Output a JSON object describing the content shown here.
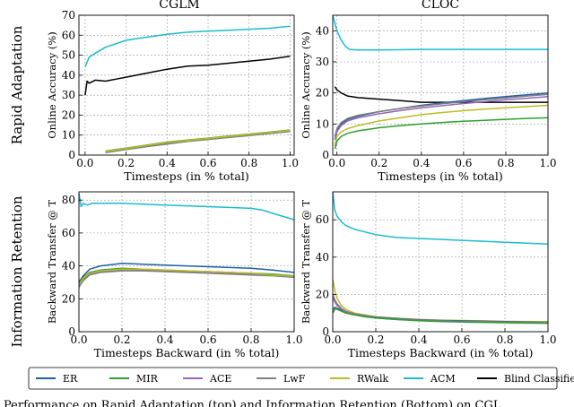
{
  "column_titles": [
    "CGLM",
    "CLOC"
  ],
  "row_titles": [
    "Rapid Adaptation",
    "Information Retention"
  ],
  "caption_fragment": "Performance on Rapid Adaptation (top) and Information Retention (Bottom) on CGL",
  "legend": [
    {
      "name": "ER",
      "color": "#1f5fa6"
    },
    {
      "name": "MIR",
      "color": "#2ca02c"
    },
    {
      "name": "ACE",
      "color": "#9467bd"
    },
    {
      "name": "LwF",
      "color": "#7f7f7f"
    },
    {
      "name": "RWalk",
      "color": "#bcbd22"
    },
    {
      "name": "ACM",
      "color": "#17becf"
    },
    {
      "name": "Blind Classifier",
      "color": "#000000"
    }
  ],
  "chart_data": [
    {
      "type": "line",
      "panel": "CGLM - Rapid Adaptation",
      "xlabel": "Timesteps (in % total)",
      "ylabel": "Online Accuracy (%)",
      "xlim": [
        -0.03,
        1.02
      ],
      "ylim": [
        0,
        70
      ],
      "xticks": [
        "0.0",
        "0.2",
        "0.4",
        "0.6",
        "0.8",
        "1.0"
      ],
      "xtick_values": [
        0,
        0.2,
        0.4,
        0.6,
        0.8,
        1.0
      ],
      "yticks": [
        "0",
        "10",
        "20",
        "30",
        "40",
        "50",
        "60",
        "70"
      ],
      "ytick_values": [
        0,
        10,
        20,
        30,
        40,
        50,
        60,
        70
      ],
      "series": [
        {
          "name": "ACM",
          "x": [
            0,
            0.02,
            0.05,
            0.1,
            0.2,
            0.3,
            0.4,
            0.5,
            0.6,
            0.7,
            0.8,
            0.9,
            1.0
          ],
          "values": [
            44,
            49,
            51,
            54,
            57.5,
            59,
            60.5,
            61.5,
            62,
            62.5,
            63,
            63.5,
            64.5
          ]
        },
        {
          "name": "Blind Classifier",
          "x": [
            0,
            0.01,
            0.02,
            0.05,
            0.1,
            0.15,
            0.2,
            0.3,
            0.4,
            0.5,
            0.6,
            0.7,
            0.8,
            0.9,
            1.0
          ],
          "values": [
            30,
            37,
            36,
            37.5,
            37,
            38,
            39,
            41,
            43,
            44.5,
            45,
            46,
            47,
            48,
            49.5
          ]
        },
        {
          "name": "ER",
          "x": [
            0.1,
            0.2,
            0.3,
            0.4,
            0.5,
            0.6,
            0.7,
            0.8,
            0.9,
            1.0
          ],
          "values": [
            1.5,
            3,
            4.5,
            6,
            7,
            8,
            9,
            10,
            11,
            12
          ]
        },
        {
          "name": "MIR",
          "x": [
            0.1,
            0.2,
            0.3,
            0.4,
            0.5,
            0.6,
            0.7,
            0.8,
            0.9,
            1.0
          ],
          "values": [
            2,
            3.5,
            5,
            6.5,
            7.5,
            8.5,
            9.5,
            10.5,
            11.5,
            12.5
          ]
        },
        {
          "name": "ACE",
          "x": [
            0.1,
            0.2,
            0.3,
            0.4,
            0.5,
            0.6,
            0.7,
            0.8,
            0.9,
            1.0
          ],
          "values": [
            1.5,
            3,
            4.5,
            6,
            7,
            8,
            9,
            10,
            11,
            12
          ]
        },
        {
          "name": "LwF",
          "x": [
            0.1,
            0.2,
            0.3,
            0.4,
            0.5,
            0.6,
            0.7,
            0.8,
            0.9,
            1.0
          ],
          "values": [
            1.2,
            2.8,
            4.2,
            5.5,
            6.8,
            7.8,
            8.8,
            9.8,
            10.8,
            11.8
          ]
        },
        {
          "name": "RWalk",
          "x": [
            0.1,
            0.2,
            0.3,
            0.4,
            0.5,
            0.6,
            0.7,
            0.8,
            0.9,
            1.0
          ],
          "values": [
            1.8,
            3.3,
            4.8,
            6.3,
            7.3,
            8.3,
            9.3,
            10.3,
            11.3,
            12.3
          ]
        }
      ]
    },
    {
      "type": "line",
      "panel": "CLOC - Rapid Adaptation",
      "xlabel": "Timesteps (in % total)",
      "ylabel": "Online Accuracy (%)",
      "xlim": [
        -0.02,
        1.0
      ],
      "ylim": [
        0,
        45
      ],
      "xticks": [
        "0.0",
        "0.2",
        "0.4",
        "0.6",
        "0.8",
        "1.0"
      ],
      "xtick_values": [
        0,
        0.2,
        0.4,
        0.6,
        0.8,
        1.0
      ],
      "yticks": [
        "0",
        "10",
        "20",
        "30",
        "40"
      ],
      "ytick_values": [
        0,
        10,
        20,
        30,
        40
      ],
      "series": [
        {
          "name": "ACM",
          "x": [
            -0.02,
            0,
            0.02,
            0.04,
            0.06,
            0.1,
            0.2,
            0.4,
            0.6,
            0.8,
            1.0
          ],
          "values": [
            45,
            40,
            37,
            35,
            34,
            33.8,
            33.8,
            34,
            34,
            34,
            34
          ]
        },
        {
          "name": "Blind Classifier",
          "x": [
            -0.01,
            0,
            0.02,
            0.05,
            0.1,
            0.2,
            0.3,
            0.4,
            0.5,
            0.6,
            0.7,
            0.8,
            0.9,
            1.0
          ],
          "values": [
            22,
            21,
            20,
            19,
            18.5,
            18,
            17.5,
            17,
            17,
            17,
            17,
            17,
            17,
            17
          ]
        },
        {
          "name": "ER",
          "x": [
            -0.01,
            0,
            0.02,
            0.05,
            0.1,
            0.2,
            0.3,
            0.4,
            0.5,
            0.6,
            0.7,
            0.8,
            0.9,
            1.0
          ],
          "values": [
            5,
            8,
            10,
            11.5,
            12.5,
            14,
            15,
            16,
            16.8,
            17.5,
            18.2,
            18.8,
            19.4,
            20
          ]
        },
        {
          "name": "LwF",
          "x": [
            -0.01,
            0,
            0.02,
            0.05,
            0.1,
            0.2,
            0.3,
            0.4,
            0.5,
            0.6,
            0.7,
            0.8,
            0.9,
            1.0
          ],
          "values": [
            6,
            8.5,
            10.5,
            11.8,
            12.8,
            14,
            15,
            15.8,
            16.5,
            17.2,
            17.8,
            18.4,
            19,
            19.5
          ]
        },
        {
          "name": "ACE",
          "x": [
            -0.01,
            0,
            0.02,
            0.05,
            0.1,
            0.2,
            0.3,
            0.4,
            0.5,
            0.6,
            0.7,
            0.8,
            0.9,
            1.0
          ],
          "values": [
            5,
            7.5,
            9.5,
            11,
            12,
            13.3,
            14.3,
            15.2,
            15.9,
            16.6,
            17.2,
            17.8,
            18.3,
            18.8
          ]
        },
        {
          "name": "RWalk",
          "x": [
            -0.01,
            0,
            0.02,
            0.05,
            0.1,
            0.2,
            0.3,
            0.4,
            0.5,
            0.6,
            0.7,
            0.8,
            0.9,
            1.0
          ],
          "values": [
            3,
            6,
            7.5,
            8.5,
            9.5,
            11,
            12,
            13,
            13.7,
            14.3,
            14.8,
            15.2,
            15.6,
            16
          ]
        },
        {
          "name": "MIR",
          "x": [
            -0.01,
            0,
            0.02,
            0.05,
            0.1,
            0.2,
            0.3,
            0.4,
            0.5,
            0.6,
            0.7,
            0.8,
            0.9,
            1.0
          ],
          "values": [
            2,
            4.5,
            6,
            7,
            7.8,
            8.8,
            9.5,
            10,
            10.5,
            10.9,
            11.2,
            11.5,
            11.8,
            12
          ]
        }
      ]
    },
    {
      "type": "line",
      "panel": "CGLM - Information Retention",
      "xlabel": "Timesteps Backward (in % total)",
      "ylabel": "Backward Transfer @ T",
      "xlim": [
        0,
        1.0
      ],
      "ylim": [
        0,
        85
      ],
      "xticks": [
        "0.0",
        "0.2",
        "0.4",
        "0.6",
        "0.8",
        "1.0"
      ],
      "xtick_values": [
        0,
        0.2,
        0.4,
        0.6,
        0.8,
        1.0
      ],
      "yticks": [
        "0",
        "20",
        "40",
        "60",
        "80"
      ],
      "ytick_values": [
        0,
        20,
        40,
        60,
        80
      ],
      "series": [
        {
          "name": "ACM",
          "x": [
            0,
            0.01,
            0.02,
            0.04,
            0.06,
            0.1,
            0.2,
            0.3,
            0.4,
            0.5,
            0.6,
            0.7,
            0.8,
            0.85,
            0.9,
            0.95,
            1.0
          ],
          "values": [
            84,
            76,
            78,
            77,
            78,
            78,
            78,
            77.5,
            77,
            76.5,
            76,
            75.5,
            75,
            74,
            72,
            70,
            68
          ]
        },
        {
          "name": "ER",
          "x": [
            0,
            0.02,
            0.05,
            0.1,
            0.2,
            0.3,
            0.4,
            0.5,
            0.6,
            0.7,
            0.8,
            0.9,
            1.0
          ],
          "values": [
            30,
            34,
            38,
            40,
            41.5,
            41,
            40.5,
            40,
            39.5,
            39,
            38.5,
            37.5,
            36
          ]
        },
        {
          "name": "MIR",
          "x": [
            0,
            0.02,
            0.05,
            0.1,
            0.2,
            0.3,
            0.4,
            0.5,
            0.6,
            0.7,
            0.8,
            0.9,
            1.0
          ],
          "values": [
            29,
            33,
            36,
            37.5,
            38.5,
            38,
            37.5,
            37,
            36.5,
            36,
            35.5,
            35,
            34
          ]
        },
        {
          "name": "ACE",
          "x": [
            0,
            0.02,
            0.05,
            0.1,
            0.2,
            0.3,
            0.4,
            0.5,
            0.6,
            0.7,
            0.8,
            0.9,
            1.0
          ],
          "values": [
            28,
            32,
            35,
            36.5,
            37.5,
            37.5,
            37,
            36.5,
            36,
            35.5,
            35,
            34.5,
            33.5
          ]
        },
        {
          "name": "LwF",
          "x": [
            0,
            0.02,
            0.05,
            0.1,
            0.2,
            0.3,
            0.4,
            0.5,
            0.6,
            0.7,
            0.8,
            0.9,
            1.0
          ],
          "values": [
            27,
            31,
            34.5,
            36,
            37,
            37,
            36.5,
            36,
            35.5,
            35,
            34.5,
            34,
            33
          ]
        },
        {
          "name": "RWalk",
          "x": [
            0,
            0.02,
            0.05,
            0.1,
            0.2,
            0.3,
            0.4,
            0.5,
            0.6,
            0.7,
            0.8,
            0.9,
            1.0
          ],
          "values": [
            28.5,
            32.5,
            35.5,
            37,
            38,
            38,
            37.5,
            37,
            36.5,
            36,
            35.5,
            34.5,
            33.8
          ]
        }
      ]
    },
    {
      "type": "line",
      "panel": "CLOC - Information Retention",
      "xlabel": "Timesteps Backward (in % total)",
      "ylabel": "Backward Transfer @ T",
      "xlim": [
        0,
        1.0
      ],
      "ylim": [
        0,
        75
      ],
      "xticks": [
        "0.0",
        "0.2",
        "0.4",
        "0.6",
        "0.8",
        "1.0"
      ],
      "xtick_values": [
        0,
        0.2,
        0.4,
        0.6,
        0.8,
        1.0
      ],
      "yticks": [
        "0",
        "20",
        "40",
        "60"
      ],
      "ytick_values": [
        0,
        20,
        40,
        60
      ],
      "series": [
        {
          "name": "ACM",
          "x": [
            0,
            0.01,
            0.02,
            0.04,
            0.06,
            0.1,
            0.2,
            0.3,
            0.4,
            0.5,
            0.6,
            0.7,
            0.8,
            0.9,
            1.0
          ],
          "values": [
            75,
            65,
            62,
            59,
            57,
            55,
            52,
            50.5,
            50,
            49.5,
            49,
            48.5,
            48,
            47.5,
            47
          ]
        },
        {
          "name": "RWalk",
          "x": [
            0,
            0.01,
            0.02,
            0.04,
            0.06,
            0.1,
            0.15,
            0.2,
            0.3,
            0.4,
            0.5,
            0.6,
            0.7,
            0.8,
            0.9,
            1.0
          ],
          "values": [
            28,
            22,
            18,
            14,
            12,
            10,
            9,
            8,
            7.2,
            6.6,
            6.2,
            6,
            5.8,
            5.6,
            5.5,
            5.4
          ]
        },
        {
          "name": "ER",
          "x": [
            0,
            0.01,
            0.02,
            0.04,
            0.06,
            0.1,
            0.15,
            0.2,
            0.3,
            0.4,
            0.5,
            0.6,
            0.7,
            0.8,
            0.9,
            1.0
          ],
          "values": [
            12,
            13,
            12.5,
            11.5,
            10.5,
            9.5,
            8.5,
            7.8,
            7,
            6.4,
            6,
            5.8,
            5.6,
            5.4,
            5.2,
            5
          ]
        },
        {
          "name": "ACE",
          "x": [
            0,
            0.01,
            0.02,
            0.04,
            0.06,
            0.1,
            0.15,
            0.2,
            0.3,
            0.4,
            0.5,
            0.6,
            0.7,
            0.8,
            0.9,
            1.0
          ],
          "values": [
            20,
            17,
            15,
            12.5,
            11,
            9.5,
            8.5,
            7.6,
            6.8,
            6.2,
            5.8,
            5.6,
            5.4,
            5.2,
            5,
            4.9
          ]
        },
        {
          "name": "LwF",
          "x": [
            0,
            0.01,
            0.02,
            0.04,
            0.06,
            0.1,
            0.15,
            0.2,
            0.3,
            0.4,
            0.5,
            0.6,
            0.7,
            0.8,
            0.9,
            1.0
          ],
          "values": [
            18,
            16,
            14,
            12,
            10.8,
            9.3,
            8.3,
            7.4,
            6.6,
            6,
            5.6,
            5.4,
            5.2,
            5,
            4.8,
            4.7
          ]
        },
        {
          "name": "MIR",
          "x": [
            0,
            0.01,
            0.02,
            0.04,
            0.06,
            0.1,
            0.15,
            0.2,
            0.3,
            0.4,
            0.5,
            0.6,
            0.7,
            0.8,
            0.9,
            1.0
          ],
          "values": [
            10,
            12,
            12,
            11,
            10,
            9,
            8,
            7.3,
            6.5,
            5.9,
            5.5,
            5.2,
            5,
            4.8,
            4.6,
            4.5
          ]
        }
      ]
    }
  ]
}
